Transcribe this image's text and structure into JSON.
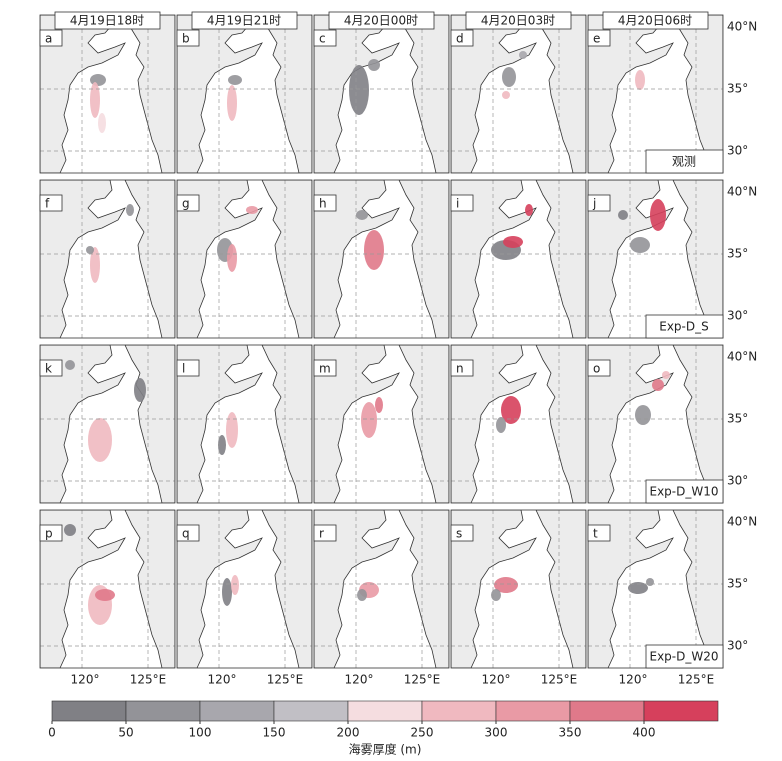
{
  "columns": [
    "4月19日18时",
    "4月19日21时",
    "4月20日00时",
    "4月20日03时",
    "4月20日06时"
  ],
  "panels": [
    "a",
    "b",
    "c",
    "d",
    "e",
    "f",
    "g",
    "h",
    "i",
    "j",
    "k",
    "l",
    "m",
    "n",
    "o",
    "p",
    "q",
    "r",
    "s",
    "t"
  ],
  "rows": [
    "观测",
    "Exp-D_S",
    "Exp-D_W10",
    "Exp-D_W20"
  ],
  "latitude_labels": [
    "40°N",
    "35°",
    "30°"
  ],
  "longitude_labels": [
    "120°",
    "125°E"
  ],
  "colorbar": {
    "label": "海雾厚度 (m)",
    "bins": [
      0,
      50,
      100,
      150,
      200,
      250,
      300,
      350,
      400,
      450
    ],
    "ticks": [
      0,
      50,
      100,
      150,
      200,
      250,
      300,
      350,
      400
    ],
    "colors": [
      "#808085",
      "#939398",
      "#a8a7ad",
      "#c1bfc5",
      "#f5dde0",
      "#f0b9c0",
      "#e99aa5",
      "#e0798a",
      "#d6405c"
    ]
  }
}
